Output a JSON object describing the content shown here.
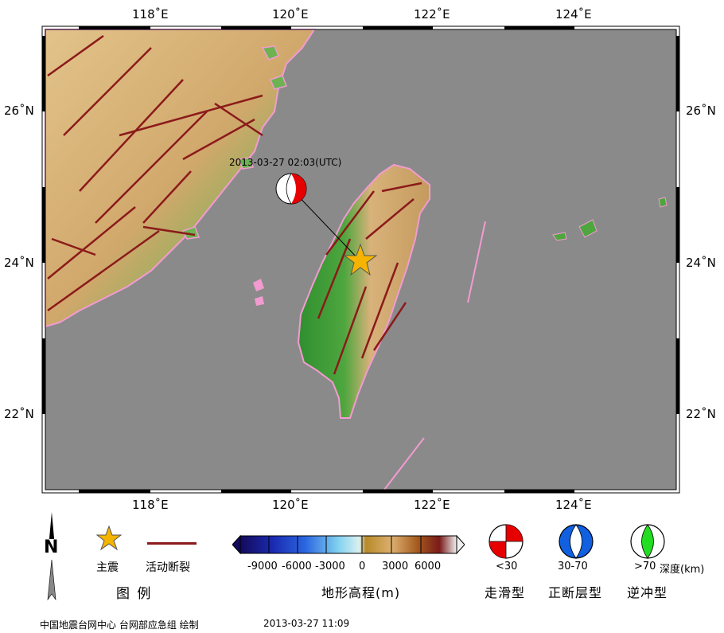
{
  "map": {
    "lon_labels": [
      "118˚E",
      "120˚E",
      "122˚E",
      "124˚E"
    ],
    "lat_labels": [
      "26˚N",
      "24˚N",
      "22˚N"
    ],
    "event_label": "2013-03-27 02:03(UTC)",
    "colors": {
      "sea": "#8a8a8a",
      "land_low": "#2e8b2e",
      "land_high": "#d8b27a",
      "fault": "#8b1a1a",
      "coastline": "#f29bd0",
      "epicenter": "#f5b400"
    }
  },
  "legend": {
    "north_label": "N",
    "title": "图  例",
    "main_quake_label": "主震",
    "fault_label": "活动断裂",
    "colorbar": {
      "tick_labels": [
        "-9000",
        "-6000",
        "-3000",
        "0",
        "3000",
        "6000"
      ],
      "title": "地形高程(m)"
    },
    "mechanisms": [
      {
        "depth_label": "<30",
        "type_label": "走滑型",
        "color": "#e60000",
        "icon": "strike-slip-beachball-icon"
      },
      {
        "depth_label": "30-70",
        "type_label": "正断层型",
        "color": "#1060e0",
        "icon": "normal-fault-beachball-icon"
      },
      {
        "depth_label": ">70",
        "type_label": "逆冲型",
        "color": "#22dd22",
        "icon": "thrust-beachball-icon"
      }
    ],
    "depth_unit_label": "深度(km)"
  },
  "footer": {
    "credit": "中国地震台网中心 台网部应急组 绘制",
    "timestamp": "2013-03-27 11:09"
  }
}
